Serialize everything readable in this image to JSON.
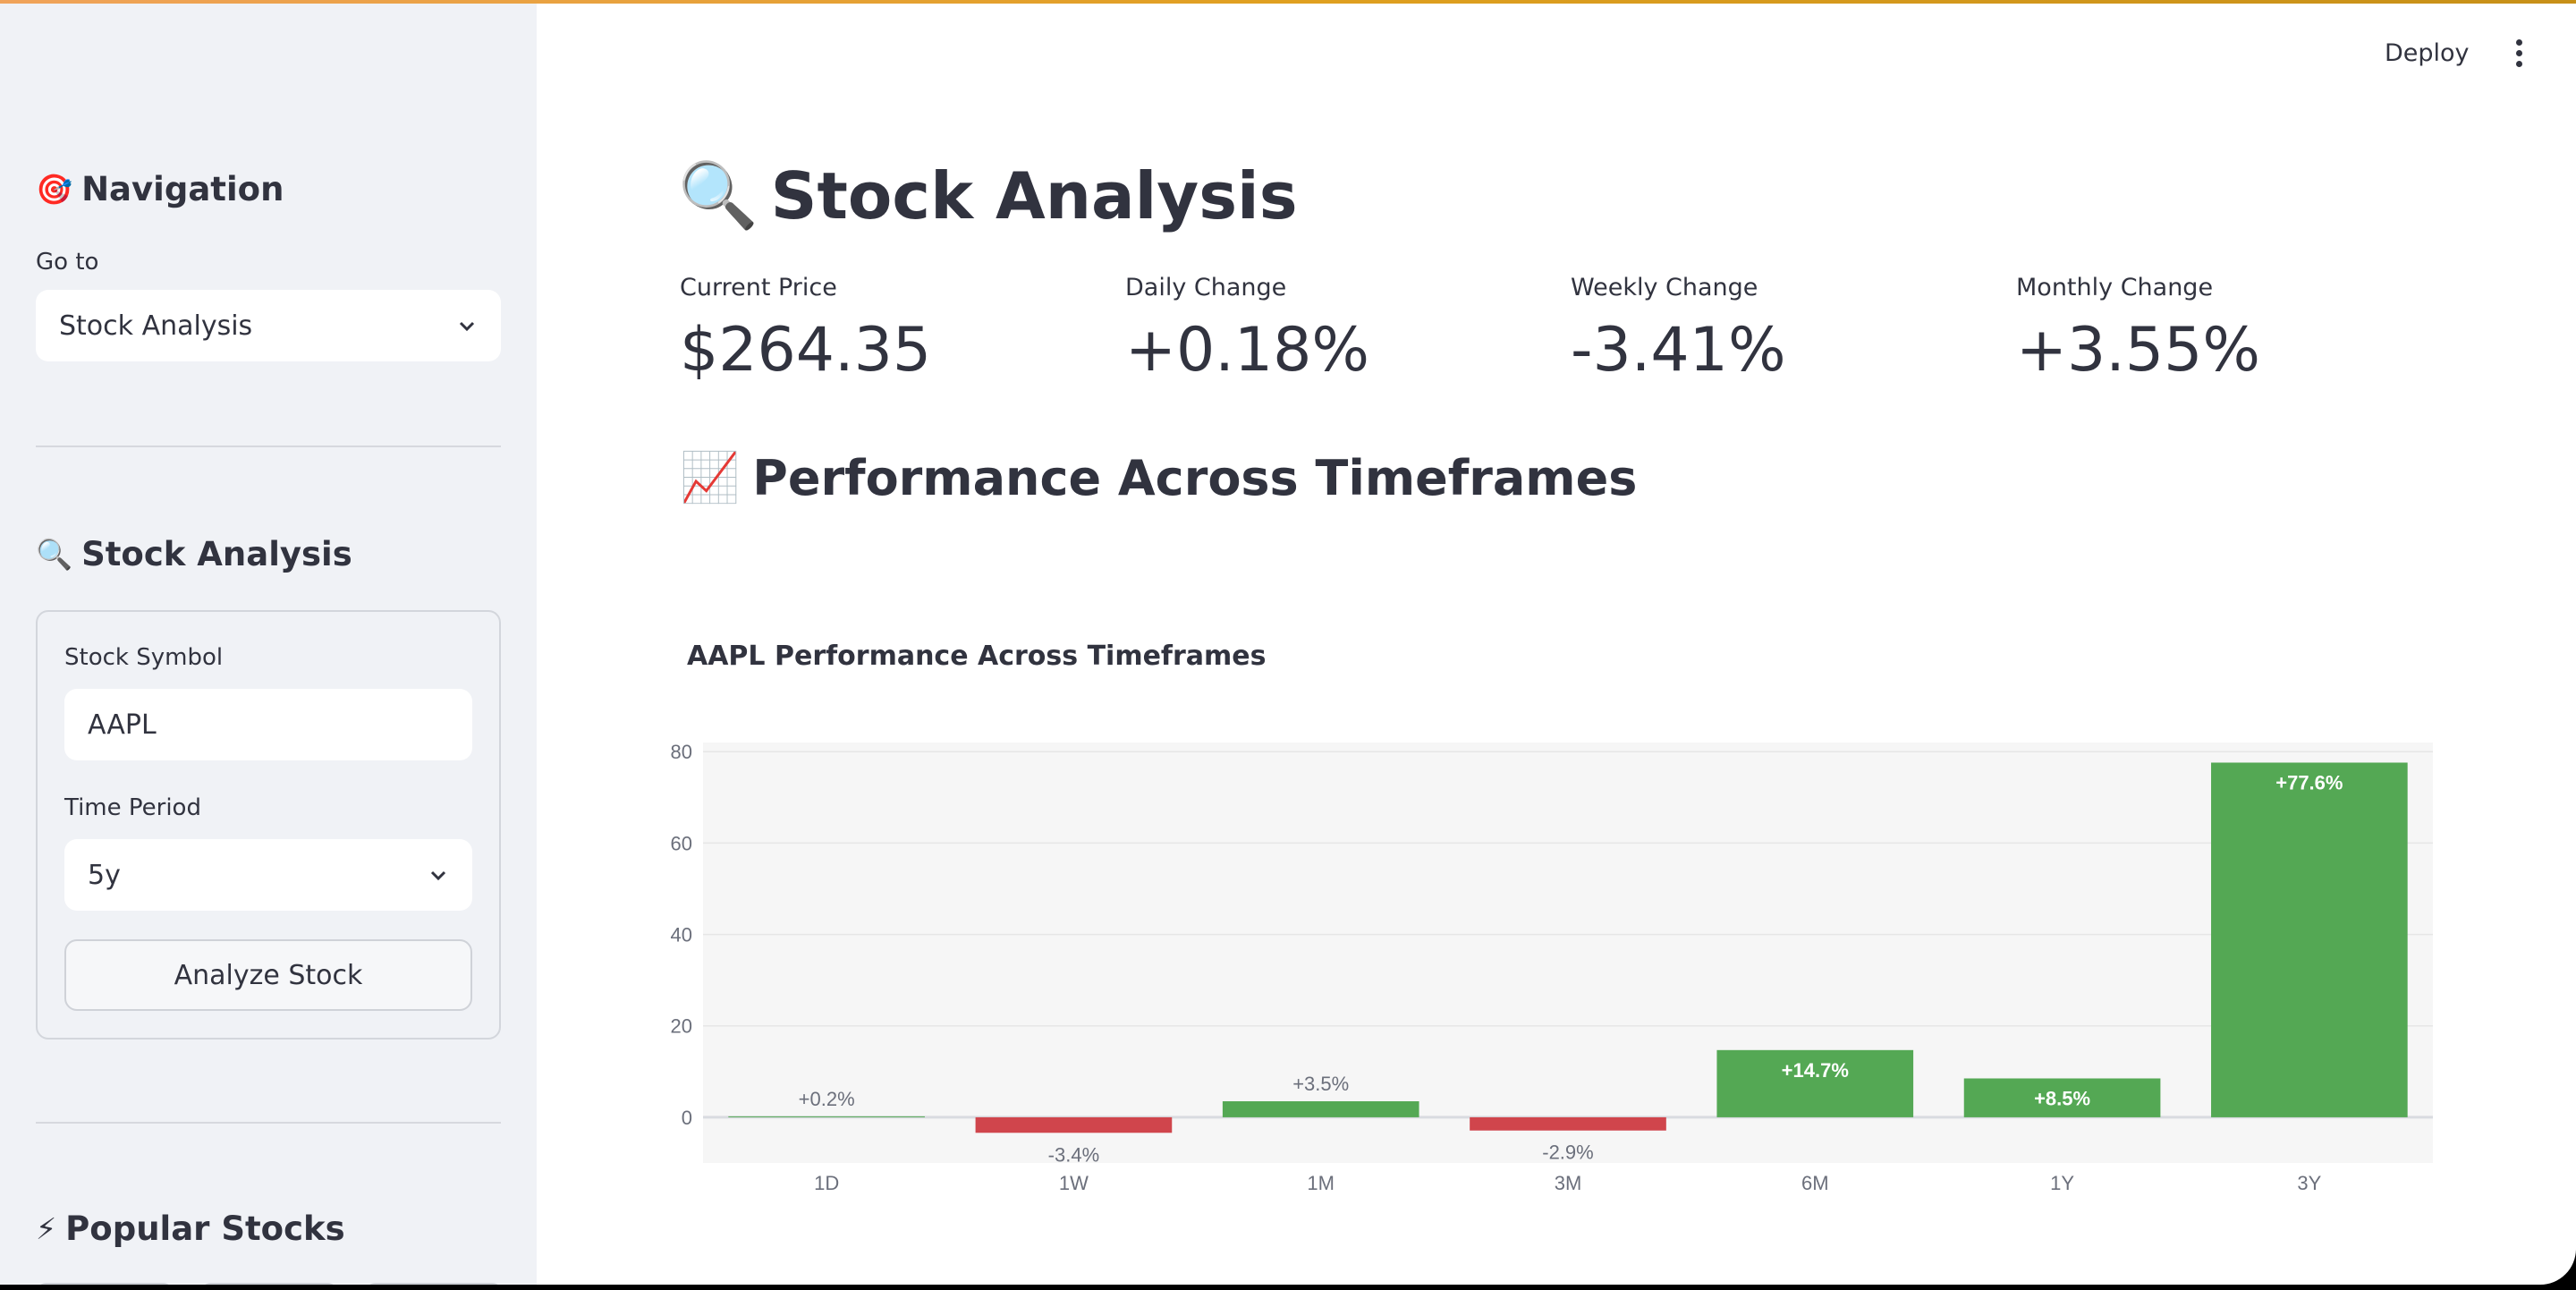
{
  "sidebar": {
    "navigation_heading": "Navigation",
    "navigation_icon": "🎯",
    "goto_label": "Go to",
    "goto_value": "Stock Analysis",
    "stock_heading": "Stock Analysis",
    "stock_icon": "🔍",
    "symbol_label": "Stock Symbol",
    "symbol_value": "AAPL",
    "period_label": "Time Period",
    "period_value": "5y",
    "analyze_button": "Analyze Stock",
    "popular_heading": "Popular Stocks",
    "popular_icon": "⚡"
  },
  "header": {
    "deploy_label": "Deploy"
  },
  "main": {
    "title": "Stock Analysis",
    "title_icon": "🔍",
    "metrics": [
      {
        "label": "Current Price",
        "value": "$264.35"
      },
      {
        "label": "Daily Change",
        "value": "+0.18%"
      },
      {
        "label": "Weekly Change",
        "value": "-3.41%"
      },
      {
        "label": "Monthly Change",
        "value": "+3.55%"
      }
    ],
    "section_heading": "Performance Across Timeframes",
    "section_icon": "📈"
  },
  "chart_data": {
    "type": "bar",
    "title": "AAPL Performance Across Timeframes",
    "categories": [
      "1D",
      "1W",
      "1M",
      "3M",
      "6M",
      "1Y",
      "3Y"
    ],
    "values": [
      0.2,
      -3.4,
      3.5,
      -2.9,
      14.7,
      8.5,
      77.6
    ],
    "data_labels": [
      "+0.2%",
      "-3.4%",
      "+3.5%",
      "-2.9%",
      "+14.7%",
      "+8.5%",
      "+77.6%"
    ],
    "yticks": [
      0,
      20,
      40,
      60,
      80
    ],
    "ylim": [
      -10,
      82
    ],
    "colors": {
      "positive": "#54a854",
      "negative": "#d0454c",
      "plot_bg": "#f6f6f6"
    }
  }
}
